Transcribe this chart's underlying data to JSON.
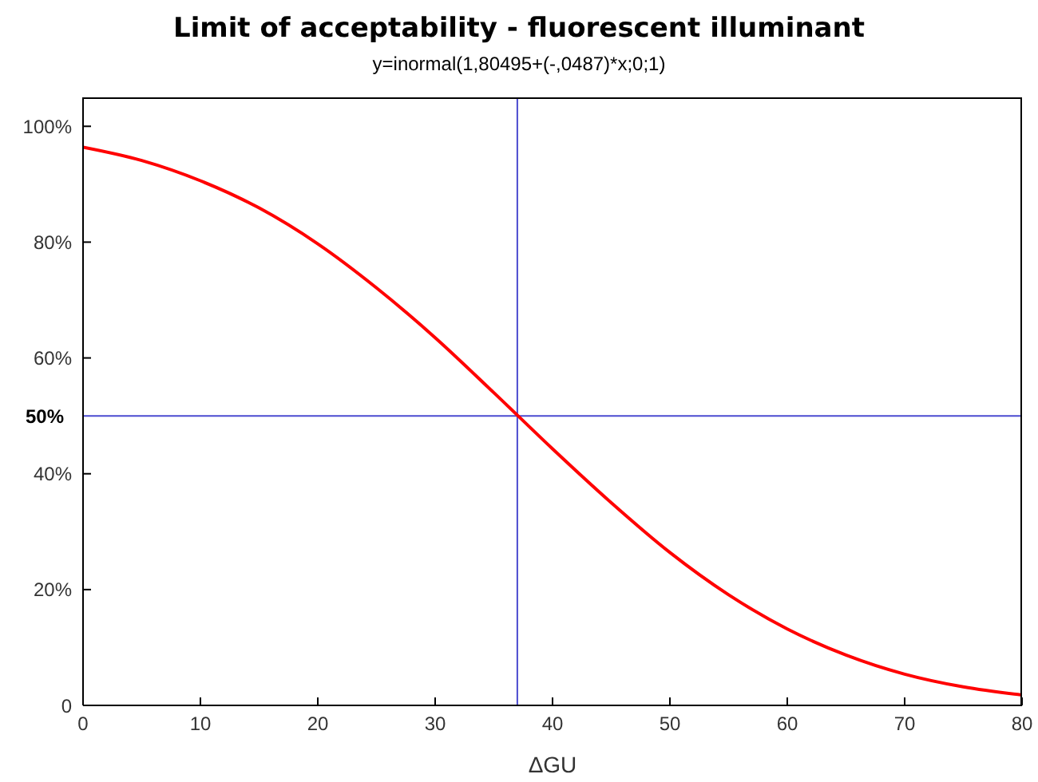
{
  "chart_data": {
    "type": "line",
    "title": "Limit of acceptability - fluorescent illuminant",
    "subtitle": "y=inormal(1,80495+(-,0487)*x;0;1)",
    "xlabel": "ΔGU",
    "x": [
      0,
      5,
      10,
      15,
      20,
      25,
      30,
      35,
      40,
      45,
      50,
      55,
      60,
      65,
      70,
      75,
      80
    ],
    "series": [
      {
        "color": "#ff0000",
        "values": [
          96.4,
          94.1,
          90.6,
          85.9,
          79.7,
          72.1,
          63.5,
          54.0,
          44.3,
          35.0,
          26.4,
          19.1,
          13.2,
          8.7,
          5.4,
          3.2,
          1.8
        ]
      }
    ],
    "xlim": [
      0,
      80
    ],
    "xticks": [
      0,
      10,
      20,
      30,
      40,
      50,
      60,
      70,
      80
    ],
    "ylim": [
      0,
      105
    ],
    "yticks": [
      {
        "value": 0,
        "label": "0"
      },
      {
        "value": 20,
        "label": "20%"
      },
      {
        "value": 40,
        "label": "40%"
      },
      {
        "value": 60,
        "label": "60%"
      },
      {
        "value": 80,
        "label": "80%"
      },
      {
        "value": 100,
        "label": "100%"
      }
    ],
    "ref_lines": [
      {
        "axis": "x",
        "value": 37,
        "color": "#4a4ad0"
      },
      {
        "axis": "y",
        "value": 50,
        "label": "50%",
        "color": "#4a4ad0"
      }
    ],
    "grid": false,
    "legend": false,
    "marker": "none",
    "line_style": "solid"
  }
}
